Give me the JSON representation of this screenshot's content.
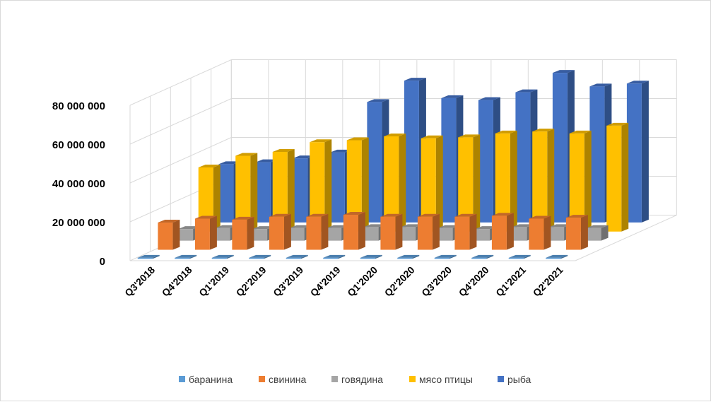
{
  "chart_data": {
    "type": "bar",
    "subtype": "3d-column",
    "title": "",
    "xlabel": "",
    "ylabel": "",
    "ylim": [
      0,
      80000000
    ],
    "yticks": [
      {
        "value": 0,
        "label": "0"
      },
      {
        "value": 20000000,
        "label": "20 000 000"
      },
      {
        "value": 40000000,
        "label": "40 000 000"
      },
      {
        "value": 60000000,
        "label": "60 000 000"
      },
      {
        "value": 80000000,
        "label": "80 000 000"
      }
    ],
    "grid": true,
    "legend_position": "bottom",
    "categories": [
      "Q3'2018",
      "Q4'2018",
      "Q1'2019",
      "Q2'2019",
      "Q3'2019",
      "Q4'2019",
      "Q1'2020",
      "Q2'2020",
      "Q3'2020",
      "Q4'2020",
      "Q1'2021",
      "Q2'2021"
    ],
    "series": [
      {
        "name": "баранина",
        "color": "#5b9bd5",
        "values": [
          300000,
          300000,
          300000,
          300000,
          300000,
          300000,
          300000,
          300000,
          300000,
          300000,
          300000,
          300000
        ]
      },
      {
        "name": "свинина",
        "color": "#ed7d31",
        "values": [
          14000000,
          16000000,
          15500000,
          17000000,
          17000000,
          18000000,
          17000000,
          17000000,
          17000000,
          17500000,
          16000000,
          16500000
        ]
      },
      {
        "name": "говядина",
        "color": "#a5a5a5",
        "values": [
          6000000,
          6500000,
          6000000,
          6500000,
          6500000,
          7000000,
          7000000,
          6500000,
          6000000,
          7000000,
          7000000,
          6500000
        ]
      },
      {
        "name": "мясо птицы",
        "color": "#ffc000",
        "values": [
          33000000,
          39000000,
          41000000,
          46000000,
          47000000,
          49000000,
          48000000,
          48500000,
          50500000,
          51500000,
          50500000,
          54500000
        ]
      },
      {
        "name": "рыба",
        "color": "#4472c4",
        "values": [
          30000000,
          31000000,
          33000000,
          36000000,
          62000000,
          73000000,
          64000000,
          63000000,
          67000000,
          77000000,
          70000000,
          71500000
        ]
      }
    ]
  }
}
